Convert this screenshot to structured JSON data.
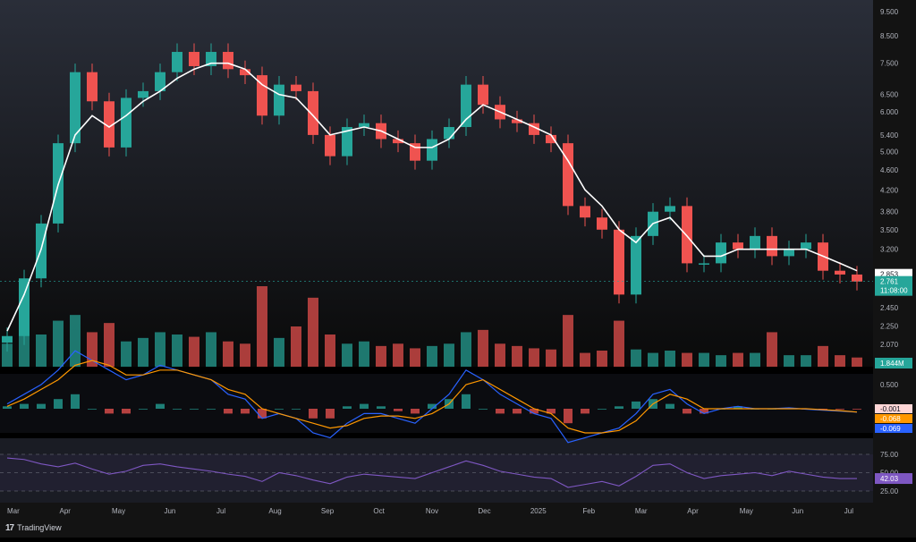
{
  "chart_data": {
    "type": "candlestick",
    "colors": {
      "up": "#26a69a",
      "down": "#ef5350",
      "ma": "#ffffff",
      "macd": "#2962ff",
      "signal": "#ff9800",
      "rsi": "#7e57c2",
      "background": "#131722"
    },
    "price_scale": "log",
    "ylim": [
      2.07,
      9.5
    ],
    "price_ticks": [
      "9.500",
      "8.500",
      "7.500",
      "6.500",
      "6.000",
      "5.400",
      "5.000",
      "4.600",
      "4.200",
      "3.800",
      "3.500",
      "3.200",
      "2.853",
      "2.761",
      "2.450",
      "2.250",
      "2.070"
    ],
    "x_ticks": [
      "Mar",
      "Apr",
      "May",
      "Jun",
      "Jul",
      "Aug",
      "Sep",
      "Oct",
      "Nov",
      "Dec",
      "2025",
      "Feb",
      "Mar",
      "Apr",
      "May",
      "Jun",
      "Jul"
    ],
    "price_series": [
      {
        "x": "Mar",
        "close": 2.15
      },
      {
        "x": "Mar",
        "close": 2.8
      },
      {
        "x": "Mar",
        "close": 3.6
      },
      {
        "x": "Apr",
        "close": 5.2
      },
      {
        "x": "Apr",
        "close": 7.2
      },
      {
        "x": "Apr",
        "close": 6.3
      },
      {
        "x": "May",
        "close": 5.1
      },
      {
        "x": "May",
        "close": 6.4
      },
      {
        "x": "May",
        "close": 6.6
      },
      {
        "x": "Jun",
        "close": 7.2
      },
      {
        "x": "Jun",
        "close": 7.9
      },
      {
        "x": "Jun",
        "close": 7.4
      },
      {
        "x": "Jul",
        "close": 7.9
      },
      {
        "x": "Jul",
        "close": 7.3
      },
      {
        "x": "Jul",
        "close": 7.1
      },
      {
        "x": "Aug",
        "close": 5.9
      },
      {
        "x": "Aug",
        "close": 6.8
      },
      {
        "x": "Aug",
        "close": 6.6
      },
      {
        "x": "Sep",
        "close": 5.4
      },
      {
        "x": "Sep",
        "close": 4.9
      },
      {
        "x": "Sep",
        "close": 5.6
      },
      {
        "x": "Oct",
        "close": 5.7
      },
      {
        "x": "Oct",
        "close": 5.3
      },
      {
        "x": "Oct",
        "close": 5.2
      },
      {
        "x": "Nov",
        "close": 4.8
      },
      {
        "x": "Nov",
        "close": 5.3
      },
      {
        "x": "Nov",
        "close": 5.6
      },
      {
        "x": "Dec",
        "close": 6.8
      },
      {
        "x": "Dec",
        "close": 6.2
      },
      {
        "x": "Dec",
        "close": 5.8
      },
      {
        "x": "2025",
        "close": 5.7
      },
      {
        "x": "2025",
        "close": 5.4
      },
      {
        "x": "2025",
        "close": 5.2
      },
      {
        "x": "Feb",
        "close": 3.9
      },
      {
        "x": "Feb",
        "close": 3.7
      },
      {
        "x": "Feb",
        "close": 3.5
      },
      {
        "x": "Mar",
        "close": 2.6
      },
      {
        "x": "Mar",
        "close": 3.4
      },
      {
        "x": "Mar",
        "close": 3.8
      },
      {
        "x": "Apr",
        "close": 3.9
      },
      {
        "x": "Apr",
        "close": 3.0
      },
      {
        "x": "Apr",
        "close": 3.0
      },
      {
        "x": "May",
        "close": 3.3
      },
      {
        "x": "May",
        "close": 3.2
      },
      {
        "x": "May",
        "close": 3.4
      },
      {
        "x": "Jun",
        "close": 3.1
      },
      {
        "x": "Jun",
        "close": 3.2
      },
      {
        "x": "Jun",
        "close": 3.3
      },
      {
        "x": "Jul",
        "close": 2.9
      },
      {
        "x": "Jul",
        "close": 2.85
      },
      {
        "x": "Jul",
        "close": 2.76
      }
    ],
    "ma_series": [
      2.2,
      2.6,
      3.2,
      4.3,
      5.4,
      5.9,
      5.6,
      5.9,
      6.3,
      6.6,
      7.0,
      7.3,
      7.5,
      7.5,
      7.3,
      6.8,
      6.5,
      6.4,
      5.9,
      5.4,
      5.5,
      5.6,
      5.5,
      5.3,
      5.1,
      5.1,
      5.3,
      5.8,
      6.2,
      6.0,
      5.8,
      5.6,
      5.4,
      4.8,
      4.2,
      3.9,
      3.5,
      3.3,
      3.6,
      3.7,
      3.4,
      3.1,
      3.1,
      3.2,
      3.2,
      3.2,
      3.2,
      3.2,
      3.1,
      3.0,
      2.9
    ],
    "volume": [
      20,
      35,
      28,
      40,
      45,
      30,
      38,
      22,
      25,
      30,
      28,
      26,
      30,
      22,
      20,
      70,
      25,
      35,
      60,
      28,
      20,
      22,
      18,
      20,
      16,
      18,
      20,
      30,
      32,
      20,
      18,
      16,
      15,
      45,
      12,
      14,
      40,
      15,
      12,
      14,
      12,
      12,
      10,
      12,
      12,
      30,
      10,
      10,
      18,
      10,
      8
    ],
    "macd": [
      0.1,
      0.3,
      0.5,
      0.8,
      1.2,
      1.0,
      0.8,
      0.6,
      0.7,
      0.9,
      0.8,
      0.7,
      0.6,
      0.3,
      0.2,
      -0.2,
      -0.1,
      -0.2,
      -0.5,
      -0.6,
      -0.3,
      -0.1,
      -0.1,
      -0.2,
      -0.3,
      0.0,
      0.3,
      0.8,
      0.6,
      0.3,
      0.1,
      -0.1,
      -0.2,
      -0.7,
      -0.6,
      -0.5,
      -0.4,
      -0.1,
      0.3,
      0.4,
      0.1,
      -0.1,
      0.0,
      0.05,
      0.0,
      0.0,
      0.02,
      -0.01,
      -0.03,
      -0.05,
      -0.069
    ],
    "signal": [
      0.05,
      0.2,
      0.4,
      0.6,
      0.9,
      1.0,
      0.9,
      0.7,
      0.7,
      0.8,
      0.8,
      0.7,
      0.6,
      0.4,
      0.3,
      0.0,
      -0.1,
      -0.2,
      -0.3,
      -0.4,
      -0.35,
      -0.2,
      -0.15,
      -0.15,
      -0.2,
      -0.1,
      0.1,
      0.5,
      0.6,
      0.4,
      0.2,
      0.0,
      -0.1,
      -0.4,
      -0.5,
      -0.5,
      -0.45,
      -0.25,
      0.1,
      0.3,
      0.2,
      0.0,
      0.0,
      0.0,
      0.0,
      0.0,
      0.0,
      0.0,
      -0.02,
      -0.04,
      -0.068
    ],
    "rsi": [
      70,
      68,
      62,
      58,
      63,
      55,
      48,
      52,
      60,
      62,
      58,
      55,
      52,
      48,
      45,
      38,
      50,
      46,
      40,
      35,
      44,
      48,
      46,
      44,
      42,
      50,
      58,
      66,
      60,
      52,
      48,
      44,
      42,
      30,
      34,
      38,
      32,
      45,
      60,
      62,
      50,
      42,
      46,
      48,
      50,
      46,
      52,
      48,
      44,
      42,
      42.03
    ],
    "labels": {
      "last_price": "2.853",
      "current_price": "2.761",
      "countdown": "11:08:00",
      "volume_last": "1.844M",
      "macd_scale": "0.500",
      "macd_value": "-0.001",
      "signal_value": "-0.068",
      "macd_line_value": "-0.069",
      "rsi_ticks": [
        "75.00",
        "50.00",
        "25.00"
      ],
      "rsi_value": "42.03"
    }
  },
  "brand": {
    "logo": "17",
    "name": "TradingView"
  }
}
